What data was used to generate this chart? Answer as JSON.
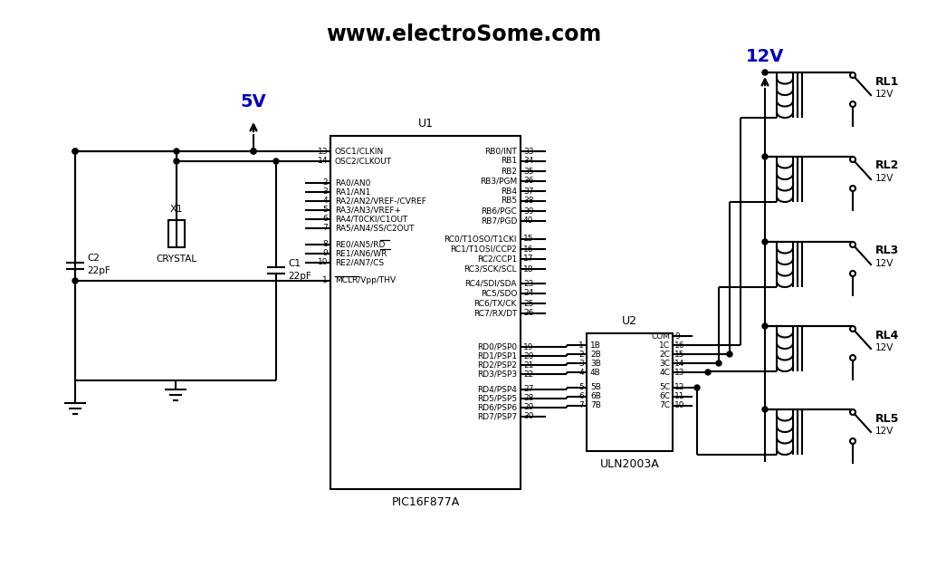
{
  "bg_color": "#ffffff",
  "line_color": "#000000",
  "blue_color": "#0000bb",
  "title": "www.electroSome.com",
  "supply_5v": "5V",
  "supply_12v": "12V",
  "u1_label": "U1",
  "u2_label": "U2",
  "pic_label": "PIC16F877A",
  "uln_label": "ULN2003A",
  "x1_label": "X1",
  "crystal_label": "CRYSTAL",
  "c1_label": "C1",
  "c1_val": "22pF",
  "c2_label": "C2",
  "c2_val": "22pF",
  "relay_names": [
    "RL1",
    "RL2",
    "RL3",
    "RL4",
    "RL5"
  ],
  "relay_voltage": "12V",
  "pic_left_pins": [
    [
      "13",
      "OSC1/CLKIN"
    ],
    [
      "14",
      "OSC2/CLKOUT"
    ],
    [
      "2",
      "RA0/AN0"
    ],
    [
      "3",
      "RA1/AN1"
    ],
    [
      "4",
      "RA2/AN2/VREF-/CVREF"
    ],
    [
      "5",
      "RA3/AN3/VREF+"
    ],
    [
      "6",
      "RA4/T0CKI/C1OUT"
    ],
    [
      "7",
      "RA5/AN4/SS/C2OUT"
    ],
    [
      "8",
      "RE0/AN5/RD"
    ],
    [
      "9",
      "RE1/AN6/WR"
    ],
    [
      "10",
      "RE2/AN7/CS"
    ],
    [
      "1",
      "MCLR/Vpp/THV"
    ]
  ],
  "pic_right_pins_rb": [
    [
      "33",
      "RB0/INT"
    ],
    [
      "34",
      "RB1"
    ],
    [
      "35",
      "RB2"
    ],
    [
      "36",
      "RB3/PGM"
    ],
    [
      "37",
      "RB4"
    ],
    [
      "38",
      "RB5"
    ],
    [
      "39",
      "RB6/PGC"
    ],
    [
      "40",
      "RB7/PGD"
    ]
  ],
  "pic_right_pins_rc": [
    [
      "15",
      "RC0/T1OSO/T1CKI"
    ],
    [
      "16",
      "RC1/T1OSI/CCP2"
    ],
    [
      "17",
      "RC2/CCP1"
    ],
    [
      "18",
      "RC3/SCK/SCL"
    ],
    [
      "23",
      "RC4/SDI/SDA"
    ],
    [
      "24",
      "RC5/SDO"
    ],
    [
      "25",
      "RC6/TX/CK"
    ],
    [
      "26",
      "RC7/RX/DT"
    ]
  ],
  "pic_right_pins_rd": [
    [
      "19",
      "RD0/PSP0"
    ],
    [
      "20",
      "RD1/PSP1"
    ],
    [
      "21",
      "RD2/PSP2"
    ],
    [
      "22",
      "RD3/PSP3"
    ],
    [
      "27",
      "RD4/PSP4"
    ],
    [
      "28",
      "RD5/PSP5"
    ],
    [
      "29",
      "RD6/PSP6"
    ],
    [
      "30",
      "RD7/PSP7"
    ]
  ],
  "uln_in_pins": [
    [
      "1",
      "1B"
    ],
    [
      "2",
      "2B"
    ],
    [
      "3",
      "3B"
    ],
    [
      "4",
      "4B"
    ],
    [
      "5",
      "5B"
    ],
    [
      "6",
      "6B"
    ],
    [
      "7",
      "7B"
    ]
  ],
  "uln_out_pins": [
    [
      "9",
      "COM"
    ],
    [
      "16",
      "1C"
    ],
    [
      "15",
      "2C"
    ],
    [
      "14",
      "3C"
    ],
    [
      "13",
      "4C"
    ],
    [
      "12",
      "5C"
    ],
    [
      "11",
      "6C"
    ],
    [
      "10",
      "7C"
    ]
  ]
}
